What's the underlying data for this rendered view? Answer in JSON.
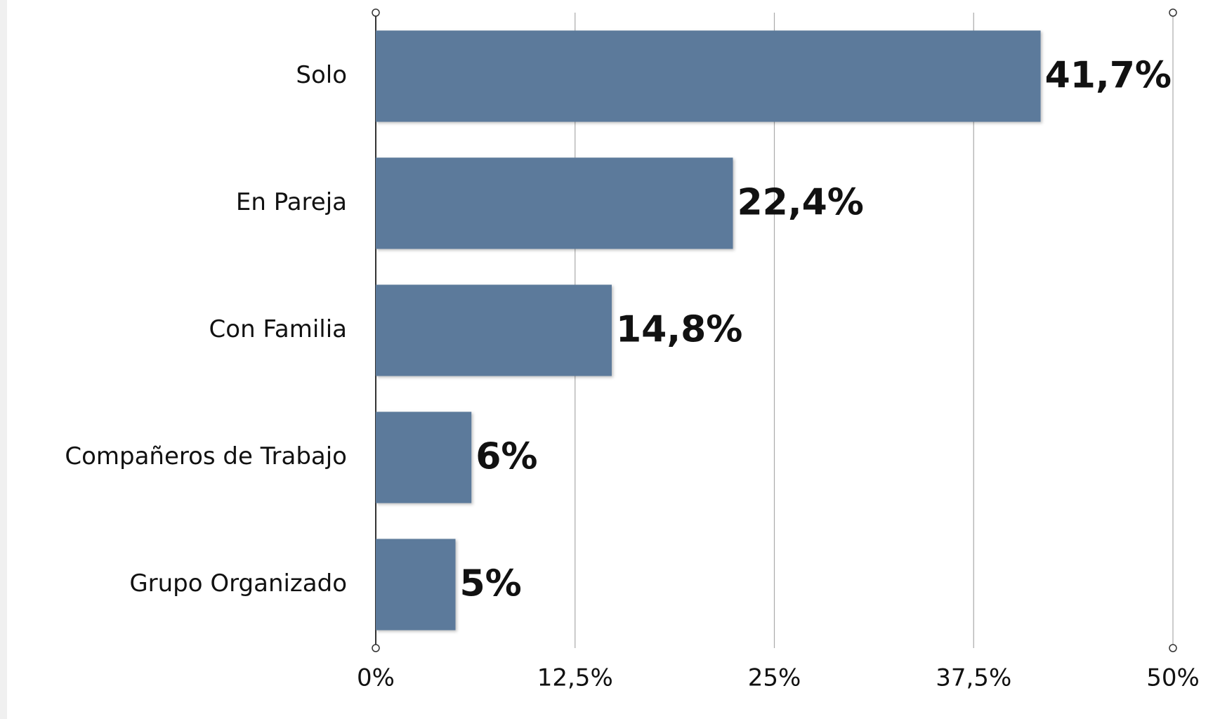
{
  "chart_data": {
    "type": "bar",
    "orientation": "horizontal",
    "categories": [
      "Solo",
      "En Pareja",
      "Con Familia",
      "Compañeros de Trabajo",
      "Grupo Organizado"
    ],
    "values": [
      41.7,
      22.4,
      14.8,
      6,
      5
    ],
    "value_labels": [
      "41,7%",
      "22,4%",
      "14,8%",
      "6%",
      "5%"
    ],
    "color": "#5b7a9b",
    "xlim": [
      0,
      50
    ],
    "xticks": [
      {
        "value": 0,
        "label": "0%"
      },
      {
        "value": 12.5,
        "label": "12,5%"
      },
      {
        "value": 25,
        "label": "25%"
      },
      {
        "value": 37.5,
        "label": "37,5%"
      },
      {
        "value": 50,
        "label": "50%"
      }
    ],
    "grid": true
  }
}
